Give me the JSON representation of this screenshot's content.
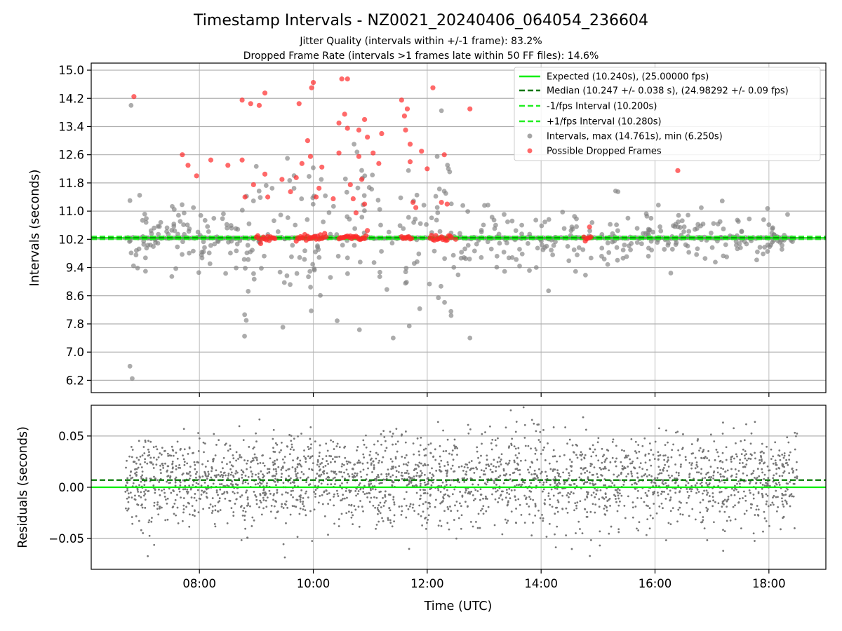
{
  "chart_data": [
    {
      "type": "scatter",
      "title": "Timestamp Intervals - NZ0021_20240406_064054_236604",
      "subtitles": [
        "Jitter Quality (intervals within +/-1 frame): 83.2%",
        "Dropped Frame Rate (intervals >1 frames late within 50 FF files): 14.6%"
      ],
      "ylabel": "Intervals (seconds)",
      "xlim_hours": [
        6.1,
        19.0
      ],
      "ylim": [
        5.85,
        15.2
      ],
      "grid": true,
      "yticks": [
        6.2,
        7.0,
        7.8,
        8.6,
        9.4,
        10.2,
        11.0,
        11.8,
        12.6,
        13.4,
        14.2,
        15.0
      ],
      "ytick_labels": [
        "6.2",
        "7.0",
        "7.8",
        "8.6",
        "9.4",
        "10.2",
        "11.0",
        "11.8",
        "12.6",
        "13.4",
        "14.2",
        "15.0"
      ],
      "legend_position": "top-right",
      "reference_lines": [
        {
          "name": "Expected (10.240s), (25.00000 fps)",
          "y": 10.24,
          "style": "solid",
          "color": "#00ee00"
        },
        {
          "name": "Median (10.247 +/- 0.038 s), (24.98292 +/- 0.09 fps)",
          "y": 10.247,
          "style": "dashed",
          "color": "#007700"
        },
        {
          "name": "-1/fps Interval (10.200s)",
          "y": 10.2,
          "style": "dashed",
          "color": "#22ee22"
        },
        {
          "name": "+1/fps Interval (10.280s)",
          "y": 10.28,
          "style": "dashed",
          "color": "#22ee22"
        }
      ],
      "series": [
        {
          "name": "Intervals, max (14.761s), min (6.250s)",
          "color": "#888888",
          "points": []
        },
        {
          "name": "Possible Dropped Frames",
          "color": "#ff2020",
          "points": [
            [
              6.85,
              14.25
            ],
            [
              7.7,
              12.6
            ],
            [
              7.8,
              12.3
            ],
            [
              7.95,
              12.0
            ],
            [
              8.2,
              12.45
            ],
            [
              8.5,
              12.3
            ],
            [
              8.75,
              12.45
            ],
            [
              8.75,
              14.15
            ],
            [
              8.9,
              14.05
            ],
            [
              9.05,
              14.0
            ],
            [
              9.15,
              14.35
            ],
            [
              9.15,
              12.05
            ],
            [
              9.2,
              11.4
            ],
            [
              8.8,
              11.4
            ],
            [
              8.95,
              11.75
            ],
            [
              9.45,
              11.9
            ],
            [
              9.6,
              11.55
            ],
            [
              9.7,
              11.95
            ],
            [
              9.75,
              14.05
            ],
            [
              9.8,
              12.35
            ],
            [
              9.9,
              13.0
            ],
            [
              9.95,
              12.55
            ],
            [
              9.97,
              14.5
            ],
            [
              10.0,
              14.65
            ],
            [
              10.05,
              11.4
            ],
            [
              10.1,
              11.65
            ],
            [
              10.15,
              12.25
            ],
            [
              10.35,
              11.35
            ],
            [
              10.45,
              12.65
            ],
            [
              10.45,
              13.5
            ],
            [
              10.5,
              14.75
            ],
            [
              10.55,
              13.75
            ],
            [
              10.6,
              14.75
            ],
            [
              10.6,
              13.35
            ],
            [
              10.65,
              11.75
            ],
            [
              10.7,
              11.35
            ],
            [
              10.75,
              10.95
            ],
            [
              10.8,
              13.3
            ],
            [
              10.8,
              12.55
            ],
            [
              10.85,
              11.9
            ],
            [
              10.9,
              13.6
            ],
            [
              10.95,
              13.1
            ],
            [
              10.9,
              11.2
            ],
            [
              10.95,
              10.45
            ],
            [
              11.05,
              12.65
            ],
            [
              11.15,
              12.35
            ],
            [
              11.2,
              13.2
            ],
            [
              11.55,
              14.15
            ],
            [
              11.6,
              13.7
            ],
            [
              11.62,
              13.3
            ],
            [
              11.65,
              13.9
            ],
            [
              11.7,
              12.9
            ],
            [
              11.7,
              12.4
            ],
            [
              11.75,
              11.25
            ],
            [
              11.8,
              11.1
            ],
            [
              11.9,
              12.7
            ],
            [
              12.0,
              12.2
            ],
            [
              12.1,
              14.5
            ],
            [
              12.25,
              11.25
            ],
            [
              12.3,
              12.6
            ],
            [
              12.35,
              11.2
            ],
            [
              12.75,
              13.9
            ],
            [
              12.5,
              10.2
            ],
            [
              14.85,
              10.55
            ],
            [
              16.4,
              12.15
            ]
          ]
        }
      ],
      "dropped_cluster_at_baseline_hours": [
        [
          9.0,
          9.35
        ],
        [
          9.7,
          10.25
        ],
        [
          10.45,
          10.95
        ],
        [
          11.55,
          11.75
        ],
        [
          12.05,
          12.45
        ],
        [
          14.75,
          14.9
        ]
      ]
    },
    {
      "type": "scatter",
      "title": "",
      "xlabel": "Time (UTC)",
      "ylabel": "Residuals (seconds)",
      "xlim_hours": [
        6.1,
        19.0
      ],
      "ylim": [
        -0.08,
        0.08
      ],
      "grid": true,
      "yticks": [
        -0.05,
        0.0,
        0.05
      ],
      "ytick_labels": [
        "−0.05",
        "0.00",
        "0.05"
      ],
      "xticks_hours": [
        8,
        10,
        12,
        14,
        16,
        18
      ],
      "xtick_labels": [
        "08:00",
        "10:00",
        "12:00",
        "14:00",
        "16:00",
        "18:00"
      ],
      "reference_lines": [
        {
          "y": 0.0,
          "style": "solid",
          "color": "#00ee00"
        },
        {
          "y": 0.007,
          "style": "dashed",
          "color": "#007700"
        }
      ],
      "series": [
        {
          "color": "#777777",
          "x_range_hours": [
            6.7,
            18.5
          ],
          "count": 2600,
          "center": 0.006,
          "spread": 0.022
        }
      ]
    }
  ],
  "colors": {
    "grey_points": "#808080",
    "red_points": "#ff2a2a",
    "expected_line": "#00ee00",
    "median_line": "#007700",
    "fps_lines": "#22ee22",
    "grid": "#b0b0b0"
  }
}
